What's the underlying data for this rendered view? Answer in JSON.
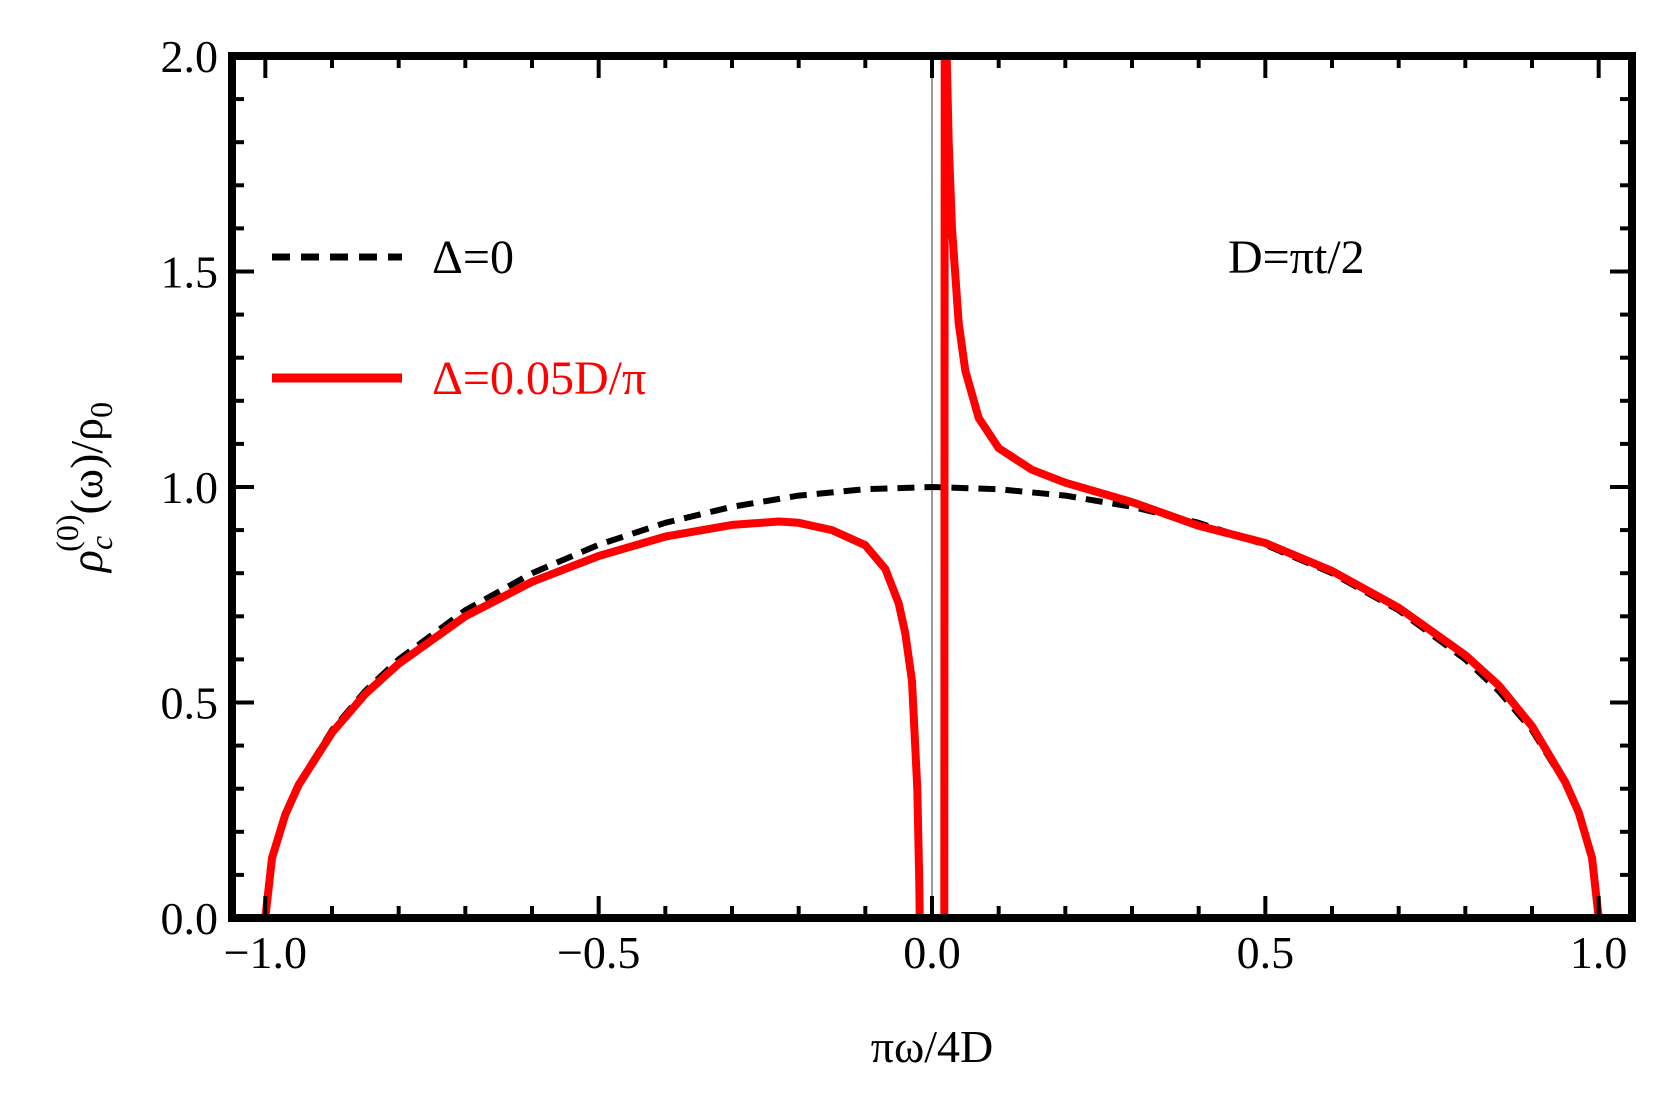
{
  "chart_data": {
    "type": "line",
    "xlabel": "πω/4D",
    "ylabel": "ρc(0)(ω)/ρ0",
    "ylabel_parts": {
      "base": "ρ",
      "sub": "c",
      "sup": "(0)",
      "rest": "(ω)/ρ",
      "rest_sub": "0"
    },
    "xlim": [
      -1.05,
      1.05
    ],
    "ylim": [
      0,
      2.0
    ],
    "xticks": [
      -1.0,
      -0.5,
      0.0,
      0.5,
      1.0
    ],
    "xtick_labels": [
      "−1.0",
      "−0.5",
      "0.0",
      "0.5",
      "1.0"
    ],
    "yticks": [
      0.0,
      0.5,
      1.0,
      1.5,
      2.0
    ],
    "ytick_labels": [
      "0.0",
      "0.5",
      "1.0",
      "1.5",
      "2.0"
    ],
    "grid": false,
    "legend_position": "upper-left",
    "annotation": "D=πt/2",
    "series": [
      {
        "name": "Δ=0",
        "color": "#000000",
        "style": "dashed",
        "x": [
          -1.0,
          -0.99,
          -0.97,
          -0.95,
          -0.9,
          -0.85,
          -0.8,
          -0.7,
          -0.6,
          -0.5,
          -0.4,
          -0.3,
          -0.2,
          -0.1,
          0.0,
          0.1,
          0.2,
          0.3,
          0.4,
          0.5,
          0.6,
          0.7,
          0.8,
          0.85,
          0.9,
          0.95,
          0.97,
          0.99,
          1.0
        ],
        "y": [
          0.0,
          0.141,
          0.243,
          0.312,
          0.436,
          0.527,
          0.6,
          0.714,
          0.8,
          0.866,
          0.917,
          0.954,
          0.98,
          0.995,
          1.0,
          0.995,
          0.98,
          0.954,
          0.917,
          0.866,
          0.8,
          0.714,
          0.6,
          0.527,
          0.436,
          0.312,
          0.243,
          0.141,
          0.0
        ]
      },
      {
        "name": "Δ=0.05D/π",
        "color": "#ff0000",
        "style": "solid",
        "x": [
          -1.0,
          -0.99,
          -0.97,
          -0.95,
          -0.9,
          -0.85,
          -0.8,
          -0.7,
          -0.6,
          -0.5,
          -0.4,
          -0.3,
          -0.23,
          -0.2,
          -0.15,
          -0.1,
          -0.07,
          -0.05,
          -0.04,
          -0.03,
          -0.022,
          -0.019,
          -0.0185,
          null,
          0.0185,
          0.019,
          0.02,
          0.022,
          0.025,
          0.03,
          0.04,
          0.05,
          0.07,
          0.1,
          0.15,
          0.2,
          0.3,
          0.4,
          0.5,
          0.6,
          0.7,
          0.8,
          0.85,
          0.9,
          0.95,
          0.97,
          0.99,
          1.0
        ],
        "y": [
          0.0,
          0.139,
          0.24,
          0.309,
          0.43,
          0.52,
          0.59,
          0.7,
          0.78,
          0.84,
          0.885,
          0.912,
          0.92,
          0.917,
          0.9,
          0.865,
          0.81,
          0.73,
          0.66,
          0.55,
          0.3,
          0.08,
          0.0,
          null,
          0.0,
          2.0,
          2.0,
          2.0,
          1.8,
          1.6,
          1.38,
          1.27,
          1.16,
          1.09,
          1.04,
          1.01,
          0.965,
          0.91,
          0.87,
          0.805,
          0.72,
          0.61,
          0.54,
          0.445,
          0.315,
          0.245,
          0.14,
          0.0
        ]
      }
    ]
  }
}
